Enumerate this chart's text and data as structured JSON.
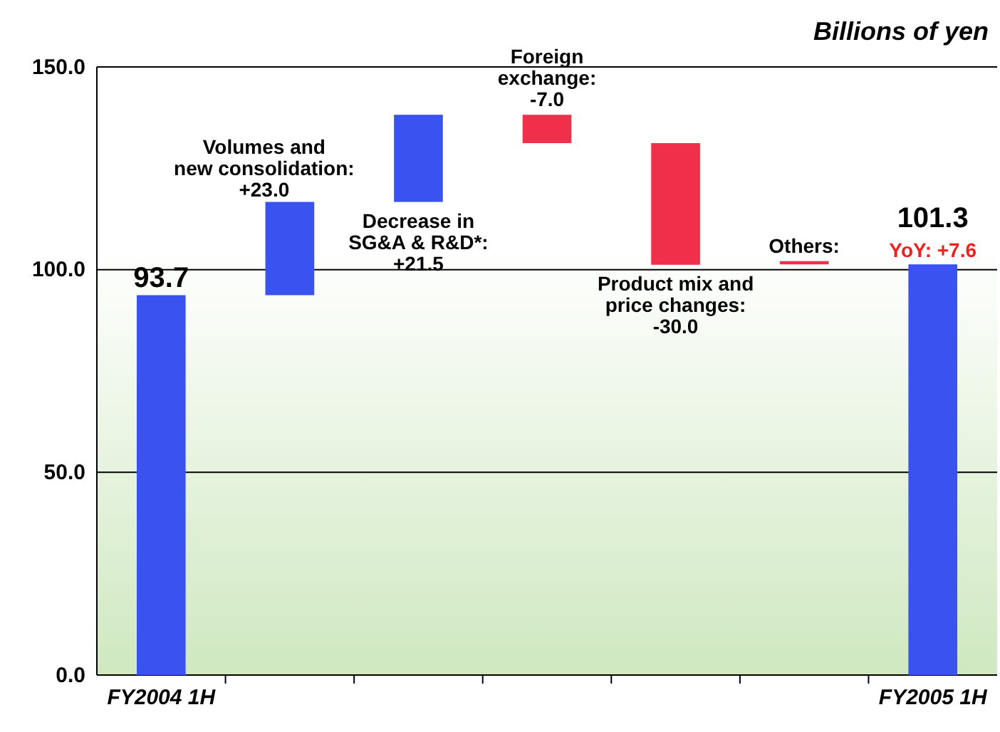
{
  "chart_data": {
    "type": "bar",
    "title": "Billions of yen",
    "categories": [
      "FY2004 1H",
      null,
      null,
      null,
      null,
      null,
      "FY2005 1H"
    ],
    "values": [
      93.7,
      23.0,
      21.5,
      -7.0,
      -30.0,
      0.8,
      101.3
    ],
    "base": [
      0,
      93.7,
      116.7,
      138.2,
      131.2,
      101.3,
      0
    ],
    "colors": [
      "#3a52f0",
      "#3a52f0",
      "#3a52f0",
      "#f0304a",
      "#f0304a",
      "#f0304a",
      "#3a52f0"
    ],
    "value_labels": [
      "93.7",
      "Volumes and\nnew consolidation:\n+23.0",
      "Decrease in\nSG&A & R&D*:\n+21.5",
      "Foreign\nexchange:\n-7.0",
      "Product mix and\nprice changes:\n-30.0",
      "Others:",
      "101.3"
    ],
    "annotations": [
      {
        "text": "YoY: +7.6",
        "x": "FY2005 1H",
        "y": 101.3
      }
    ],
    "ylim": [
      0,
      150
    ],
    "yticks": [
      {
        "value": 0,
        "label": "0.0"
      },
      {
        "value": 50,
        "label": "50.0"
      },
      {
        "value": 100,
        "label": "100.0"
      },
      {
        "value": 150,
        "label": "150.0"
      }
    ],
    "grid": "y"
  }
}
